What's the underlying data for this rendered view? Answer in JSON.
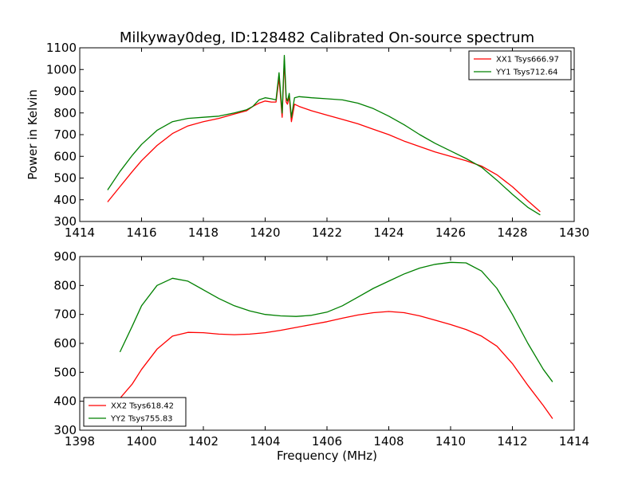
{
  "figure": {
    "title": "Milkyway0deg, ID:128482 Calibrated On-source spectrum"
  },
  "chart_data": [
    {
      "type": "line",
      "title": "Milkyway0deg, ID:128482 Calibrated On-source spectrum",
      "xlabel": "",
      "ylabel": "Power in Kelvin",
      "xlim": [
        1414,
        1430
      ],
      "ylim": [
        300,
        1100
      ],
      "xticks": [
        1414,
        1416,
        1418,
        1420,
        1422,
        1424,
        1426,
        1428,
        1430
      ],
      "yticks": [
        300,
        400,
        500,
        600,
        700,
        800,
        900,
        1000,
        1100
      ],
      "legend_position": "top-right",
      "grid": false,
      "series": [
        {
          "name": "XX1 Tsys666.97",
          "color": "#ff0000",
          "x": [
            1414.9,
            1415.3,
            1415.7,
            1416.0,
            1416.5,
            1417.0,
            1417.5,
            1418.0,
            1418.5,
            1419.0,
            1419.4,
            1419.6,
            1419.8,
            1420.0,
            1420.2,
            1420.35,
            1420.45,
            1420.55,
            1420.62,
            1420.68,
            1420.72,
            1420.78,
            1420.85,
            1420.95,
            1421.1,
            1421.5,
            1422.0,
            1422.5,
            1423.0,
            1423.5,
            1424.0,
            1424.5,
            1425.0,
            1425.5,
            1426.0,
            1426.5,
            1427.0,
            1427.5,
            1428.0,
            1428.5,
            1428.9
          ],
          "y": [
            390,
            460,
            530,
            580,
            650,
            705,
            740,
            760,
            775,
            795,
            810,
            830,
            845,
            855,
            850,
            850,
            960,
            780,
            1040,
            850,
            840,
            875,
            760,
            840,
            830,
            810,
            790,
            770,
            750,
            725,
            700,
            670,
            645,
            620,
            600,
            580,
            555,
            515,
            460,
            395,
            345
          ]
        },
        {
          "name": "YY1 Tsys712.64",
          "color": "#008000",
          "x": [
            1414.9,
            1415.3,
            1415.7,
            1416.0,
            1416.5,
            1417.0,
            1417.5,
            1418.0,
            1418.5,
            1419.0,
            1419.4,
            1419.6,
            1419.8,
            1420.0,
            1420.2,
            1420.35,
            1420.45,
            1420.55,
            1420.62,
            1420.68,
            1420.72,
            1420.78,
            1420.85,
            1420.95,
            1421.1,
            1421.5,
            1422.0,
            1422.5,
            1423.0,
            1423.5,
            1424.0,
            1424.5,
            1425.0,
            1425.5,
            1426.0,
            1426.5,
            1427.0,
            1427.5,
            1428.0,
            1428.5,
            1428.9
          ],
          "y": [
            445,
            530,
            605,
            655,
            720,
            760,
            775,
            780,
            785,
            800,
            815,
            830,
            860,
            870,
            865,
            860,
            985,
            800,
            1065,
            870,
            855,
            890,
            780,
            870,
            875,
            870,
            865,
            860,
            845,
            820,
            785,
            745,
            700,
            660,
            625,
            590,
            550,
            490,
            425,
            365,
            330
          ]
        }
      ]
    },
    {
      "type": "line",
      "title": "",
      "xlabel": "Frequency (MHz)",
      "ylabel": "",
      "xlim": [
        1398,
        1414
      ],
      "ylim": [
        300,
        900
      ],
      "xticks": [
        1398,
        1400,
        1402,
        1404,
        1406,
        1408,
        1410,
        1412,
        1414
      ],
      "yticks": [
        300,
        400,
        500,
        600,
        700,
        800,
        900
      ],
      "legend_position": "bottom-left",
      "grid": false,
      "series": [
        {
          "name": "XX2 Tsys618.42",
          "color": "#ff0000",
          "x": [
            1399.3,
            1399.7,
            1400.0,
            1400.5,
            1401.0,
            1401.5,
            1402.0,
            1402.5,
            1403.0,
            1403.5,
            1404.0,
            1404.5,
            1405.0,
            1405.5,
            1406.0,
            1406.5,
            1407.0,
            1407.5,
            1408.0,
            1408.5,
            1409.0,
            1409.5,
            1410.0,
            1410.5,
            1411.0,
            1411.5,
            1412.0,
            1412.5,
            1413.0,
            1413.3
          ],
          "y": [
            410,
            460,
            510,
            580,
            625,
            638,
            637,
            632,
            630,
            632,
            637,
            645,
            655,
            665,
            675,
            687,
            698,
            706,
            710,
            706,
            695,
            680,
            665,
            648,
            625,
            590,
            530,
            455,
            385,
            340
          ]
        },
        {
          "name": "YY2 Tsys755.83",
          "color": "#008000",
          "x": [
            1399.3,
            1399.7,
            1400.0,
            1400.5,
            1401.0,
            1401.5,
            1402.0,
            1402.5,
            1403.0,
            1403.5,
            1404.0,
            1404.5,
            1405.0,
            1405.5,
            1406.0,
            1406.5,
            1407.0,
            1407.5,
            1408.0,
            1408.5,
            1409.0,
            1409.5,
            1410.0,
            1410.5,
            1411.0,
            1411.5,
            1412.0,
            1412.5,
            1413.0,
            1413.3
          ],
          "y": [
            570,
            660,
            730,
            800,
            825,
            815,
            785,
            755,
            730,
            712,
            700,
            695,
            693,
            697,
            708,
            730,
            760,
            790,
            815,
            840,
            860,
            873,
            880,
            878,
            850,
            790,
            700,
            600,
            510,
            467
          ]
        }
      ]
    }
  ]
}
